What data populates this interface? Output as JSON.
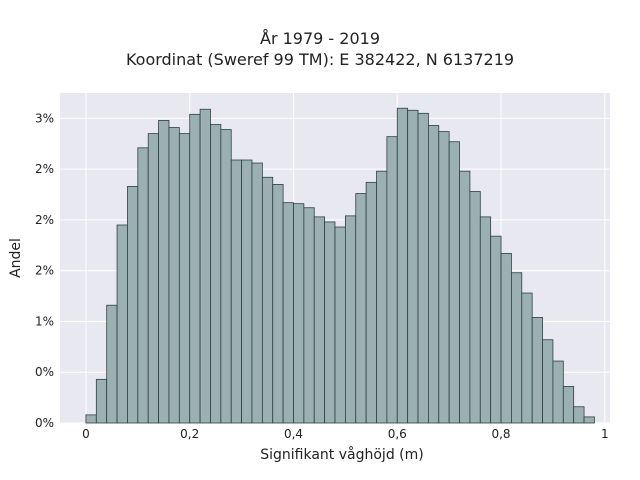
{
  "chart_data": {
    "type": "bar",
    "title": "År 1979 - 2019",
    "subtitle": "Koordinat (Sweref 99 TM): E 382422, N 6137219",
    "xlabel": "Signifikant våghöjd (m)",
    "ylabel": "Andel",
    "xlim": [
      -0.05,
      1.01
    ],
    "ylim": [
      0,
      0.0325
    ],
    "x_ticks": [
      0,
      0.2,
      0.4,
      0.6,
      0.8,
      1
    ],
    "x_tick_labels": [
      "0",
      "0,2",
      "0,4",
      "0,6",
      "0,8",
      "1"
    ],
    "y_ticks": [
      0,
      0.005,
      0.01,
      0.015,
      0.02,
      0.025,
      0.03
    ],
    "y_tick_labels": [
      "0%",
      "0%",
      "1%",
      "2%",
      "2%",
      "2%",
      "3%"
    ],
    "grid": true,
    "bin_width": 0.02,
    "bin_starts": [
      0.0,
      0.02,
      0.04,
      0.06,
      0.08,
      0.1,
      0.12,
      0.14,
      0.16,
      0.18,
      0.2,
      0.22,
      0.24,
      0.26,
      0.28,
      0.3,
      0.32,
      0.34,
      0.36,
      0.38,
      0.4,
      0.42,
      0.44,
      0.46,
      0.48,
      0.5,
      0.52,
      0.54,
      0.56,
      0.58,
      0.6,
      0.62,
      0.64,
      0.66,
      0.68,
      0.7,
      0.72,
      0.74,
      0.76,
      0.78,
      0.8,
      0.82,
      0.84,
      0.86,
      0.88,
      0.9,
      0.92,
      0.94,
      0.96
    ],
    "values": [
      0.0008,
      0.0043,
      0.0116,
      0.0195,
      0.0233,
      0.0271,
      0.0285,
      0.0298,
      0.0291,
      0.0285,
      0.0304,
      0.0309,
      0.0294,
      0.0289,
      0.0259,
      0.0259,
      0.0256,
      0.0242,
      0.0235,
      0.0217,
      0.0216,
      0.0212,
      0.0203,
      0.0198,
      0.0193,
      0.0204,
      0.0226,
      0.0237,
      0.0248,
      0.0282,
      0.031,
      0.0308,
      0.0305,
      0.0293,
      0.0287,
      0.0277,
      0.0248,
      0.0228,
      0.0203,
      0.0184,
      0.0167,
      0.0148,
      0.0128,
      0.0104,
      0.0082,
      0.0061,
      0.0036,
      0.0016,
      0.0006
    ],
    "bar_color": "#9bb1b1",
    "bar_edge_color": "#2f3f3f",
    "background_color": "#e8e8f1",
    "grid_color": "#ffffff"
  }
}
